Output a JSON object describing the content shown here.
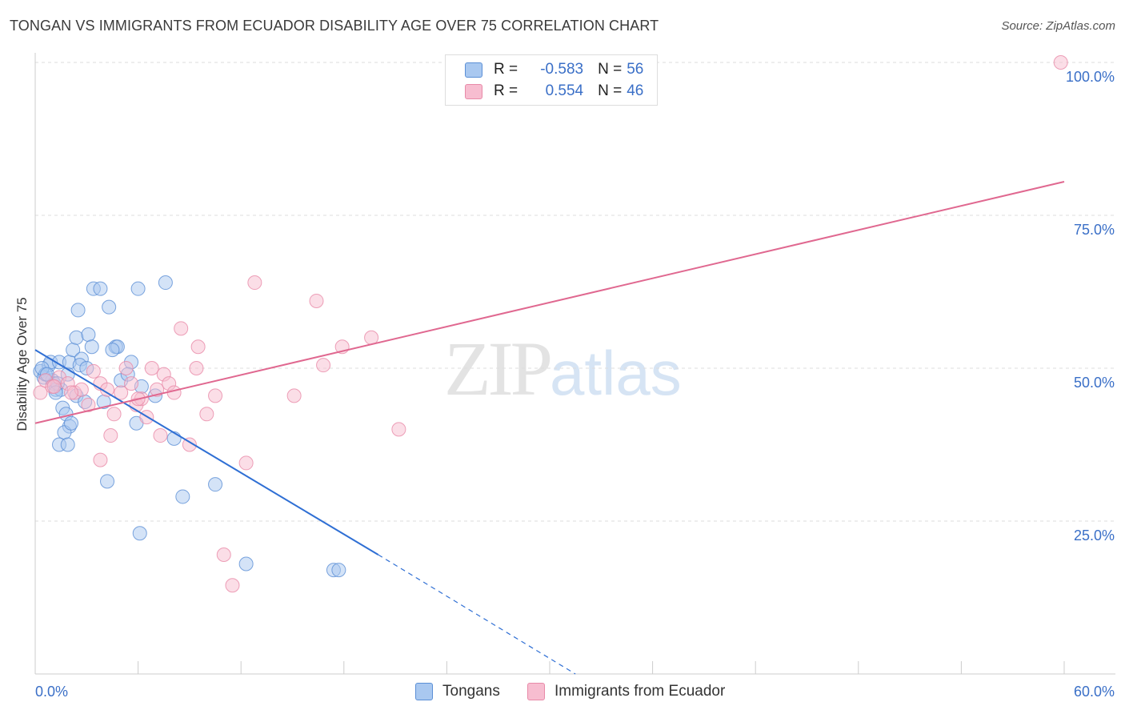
{
  "header": {
    "title": "TONGAN VS IMMIGRANTS FROM ECUADOR DISABILITY AGE OVER 75 CORRELATION CHART",
    "source": "Source: ZipAtlas.com"
  },
  "watermark": {
    "zip": "ZIP",
    "atlas": "atlas"
  },
  "legend": {
    "rows": [
      {
        "r_label": "R =",
        "r_value": "-0.583",
        "n_label": "N =",
        "n_value": "56",
        "color": "#a9c8f0"
      },
      {
        "r_label": "R =",
        "r_value": "0.554",
        "n_label": "N =",
        "n_value": "46",
        "color": "#f7bdd0"
      }
    ]
  },
  "bottom_legend": [
    {
      "label": "Tongans",
      "color": "#a9c8f0"
    },
    {
      "label": "Immigrants from Ecuador",
      "color": "#f7bdd0"
    }
  ],
  "colors": {
    "tongan_fill": "#a9c8f0",
    "tongan_stroke": "#5b8fd6",
    "tongan_line": "#2f6fd4",
    "ecuador_fill": "#f7bdd0",
    "ecuador_stroke": "#e88aa8",
    "ecuador_line": "#e06890",
    "tick_label": "#3a6fc7",
    "grid": "#dddddd"
  },
  "chart_data": {
    "type": "scatter",
    "title": "TONGAN VS IMMIGRANTS FROM ECUADOR DISABILITY AGE OVER 75 CORRELATION CHART",
    "xlabel": "",
    "ylabel": "Disability Age Over 75",
    "xlim": [
      0,
      60
    ],
    "ylim": [
      0,
      100
    ],
    "x_tick_labels": [
      "0.0%",
      "60.0%"
    ],
    "y_ticks": [
      25,
      50,
      75,
      100
    ],
    "y_tick_labels": [
      "25.0%",
      "50.0%",
      "75.0%",
      "100.0%"
    ],
    "grid": "horizontal dashed",
    "legend_position": "top-center",
    "series": [
      {
        "name": "Tongans",
        "r": -0.583,
        "n": 56,
        "trend": {
          "x": [
            0,
            20
          ],
          "y": [
            53,
            19.5
          ],
          "dashed_to": [
            31.5,
            0
          ]
        },
        "points": [
          [
            0.3,
            49.5
          ],
          [
            0.5,
            48.5
          ],
          [
            0.8,
            50.5
          ],
          [
            1.0,
            48
          ],
          [
            1.1,
            47.5
          ],
          [
            1.2,
            46.5
          ],
          [
            1.5,
            46.5
          ],
          [
            0.6,
            49
          ],
          [
            0.9,
            51
          ],
          [
            1.4,
            51
          ],
          [
            1.3,
            47.5
          ],
          [
            1.9,
            49
          ],
          [
            2.0,
            51
          ],
          [
            2.2,
            53
          ],
          [
            2.4,
            55
          ],
          [
            2.7,
            51.5
          ],
          [
            3.1,
            55.5
          ],
          [
            3.3,
            53.5
          ],
          [
            2.5,
            59.5
          ],
          [
            3.4,
            63
          ],
          [
            3.8,
            63
          ],
          [
            4.3,
            60
          ],
          [
            4.7,
            53.5
          ],
          [
            4.8,
            53.5
          ],
          [
            5.0,
            48
          ],
          [
            5.6,
            51
          ],
          [
            6.0,
            63
          ],
          [
            7.6,
            64
          ],
          [
            1.6,
            43.5
          ],
          [
            1.8,
            42.5
          ],
          [
            2.0,
            40.5
          ],
          [
            1.7,
            39.5
          ],
          [
            1.4,
            37.5
          ],
          [
            1.9,
            37.5
          ],
          [
            2.4,
            45.5
          ],
          [
            2.9,
            44.5
          ],
          [
            4.0,
            44.5
          ],
          [
            4.2,
            31.5
          ],
          [
            5.9,
            41
          ],
          [
            6.1,
            23
          ],
          [
            7.0,
            45.5
          ],
          [
            8.1,
            38.5
          ],
          [
            8.6,
            29
          ],
          [
            10.5,
            31
          ],
          [
            12.3,
            18
          ],
          [
            17.4,
            17
          ],
          [
            17.7,
            17
          ],
          [
            2.6,
            50.5
          ],
          [
            0.4,
            50
          ],
          [
            0.7,
            49
          ],
          [
            1.2,
            46
          ],
          [
            3.0,
            50
          ],
          [
            2.1,
            41
          ],
          [
            4.5,
            53
          ],
          [
            6.2,
            47
          ],
          [
            5.4,
            49
          ]
        ]
      },
      {
        "name": "Immigrants from Ecuador",
        "r": 0.554,
        "n": 46,
        "trend": {
          "x": [
            0,
            60
          ],
          "y": [
            41,
            80.5
          ]
        },
        "points": [
          [
            0.3,
            46
          ],
          [
            0.6,
            48
          ],
          [
            1.0,
            47
          ],
          [
            1.4,
            48.5
          ],
          [
            1.9,
            47.5
          ],
          [
            2.3,
            46
          ],
          [
            2.7,
            46.5
          ],
          [
            3.1,
            44
          ],
          [
            3.4,
            49.5
          ],
          [
            3.8,
            47.5
          ],
          [
            4.2,
            46.5
          ],
          [
            4.6,
            42.5
          ],
          [
            5.0,
            46
          ],
          [
            5.3,
            50
          ],
          [
            5.6,
            47.5
          ],
          [
            5.9,
            44
          ],
          [
            6.2,
            45
          ],
          [
            6.5,
            42
          ],
          [
            6.8,
            50
          ],
          [
            7.1,
            46.5
          ],
          [
            7.5,
            49
          ],
          [
            7.8,
            47.5
          ],
          [
            8.1,
            46
          ],
          [
            8.5,
            56.5
          ],
          [
            9.0,
            37.5
          ],
          [
            9.5,
            53.5
          ],
          [
            10.0,
            42.5
          ],
          [
            10.5,
            45.5
          ],
          [
            11.0,
            19.5
          ],
          [
            11.5,
            14.5
          ],
          [
            12.3,
            34.5
          ],
          [
            12.8,
            64
          ],
          [
            15.1,
            45.5
          ],
          [
            16.4,
            61
          ],
          [
            16.8,
            50.5
          ],
          [
            17.9,
            53.5
          ],
          [
            19.6,
            55
          ],
          [
            21.2,
            40
          ],
          [
            59.8,
            100
          ],
          [
            3.8,
            35
          ],
          [
            7.3,
            39
          ],
          [
            9.4,
            50
          ],
          [
            2.1,
            46
          ],
          [
            4.4,
            39
          ],
          [
            1.1,
            47
          ],
          [
            6.0,
            45
          ]
        ]
      }
    ]
  }
}
